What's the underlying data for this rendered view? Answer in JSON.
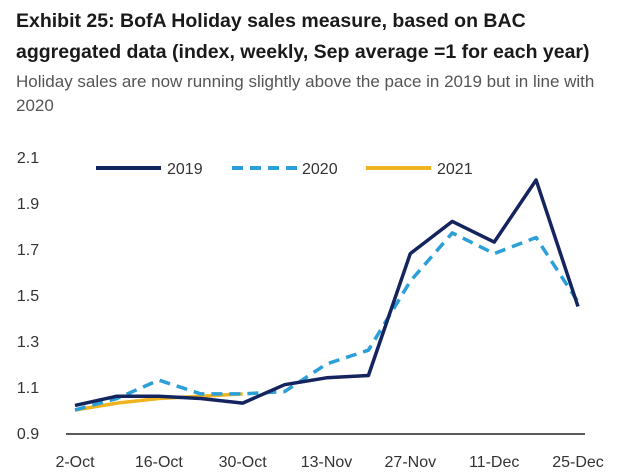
{
  "title": "Exhibit 25: BofA Holiday sales measure, based on BAC aggregated data (index, weekly, Sep average =1 for each year)",
  "subtitle": "Holiday sales are now running slightly above the pace in 2019 but in line with 2020",
  "chart_data": {
    "type": "line",
    "title": "Exhibit 25: BofA Holiday sales measure, based on BAC aggregated data (index, weekly, Sep average =1 for each year)",
    "subtitle": "Holiday sales are now running slightly above the pace in 2019 but in line with 2020",
    "xlabel": "",
    "ylabel": "",
    "x": [
      "2-Oct",
      "9-Oct",
      "16-Oct",
      "23-Oct",
      "30-Oct",
      "6-Nov",
      "13-Nov",
      "20-Nov",
      "27-Nov",
      "4-Dec",
      "11-Dec",
      "18-Dec",
      "25-Dec"
    ],
    "x_tick_labels": [
      "2-Oct",
      "16-Oct",
      "30-Oct",
      "13-Nov",
      "27-Nov",
      "11-Dec",
      "25-Dec"
    ],
    "ylim": [
      0.9,
      2.1
    ],
    "y_ticks": [
      "2.1",
      "1.9",
      "1.7",
      "1.5",
      "1.3",
      "1.1",
      "0.9"
    ],
    "grid": false,
    "legend_position": "top",
    "series": [
      {
        "name": "2019",
        "color": "#14245e",
        "dash": "solid",
        "values": [
          1.02,
          1.06,
          1.06,
          1.05,
          1.03,
          1.11,
          1.14,
          1.15,
          1.68,
          1.82,
          1.73,
          2.0,
          1.45
        ]
      },
      {
        "name": "2020",
        "color": "#2a9fd8",
        "dash": "dashed",
        "values": [
          1.0,
          1.05,
          1.13,
          1.07,
          1.07,
          1.08,
          1.2,
          1.26,
          1.56,
          1.77,
          1.68,
          1.75,
          1.47
        ]
      },
      {
        "name": "2021",
        "color": "#f0b41e",
        "dash": "solid",
        "values": [
          1.0,
          1.03,
          1.05,
          1.06,
          1.07,
          null,
          null,
          null,
          null,
          null,
          null,
          null,
          null
        ]
      }
    ]
  }
}
